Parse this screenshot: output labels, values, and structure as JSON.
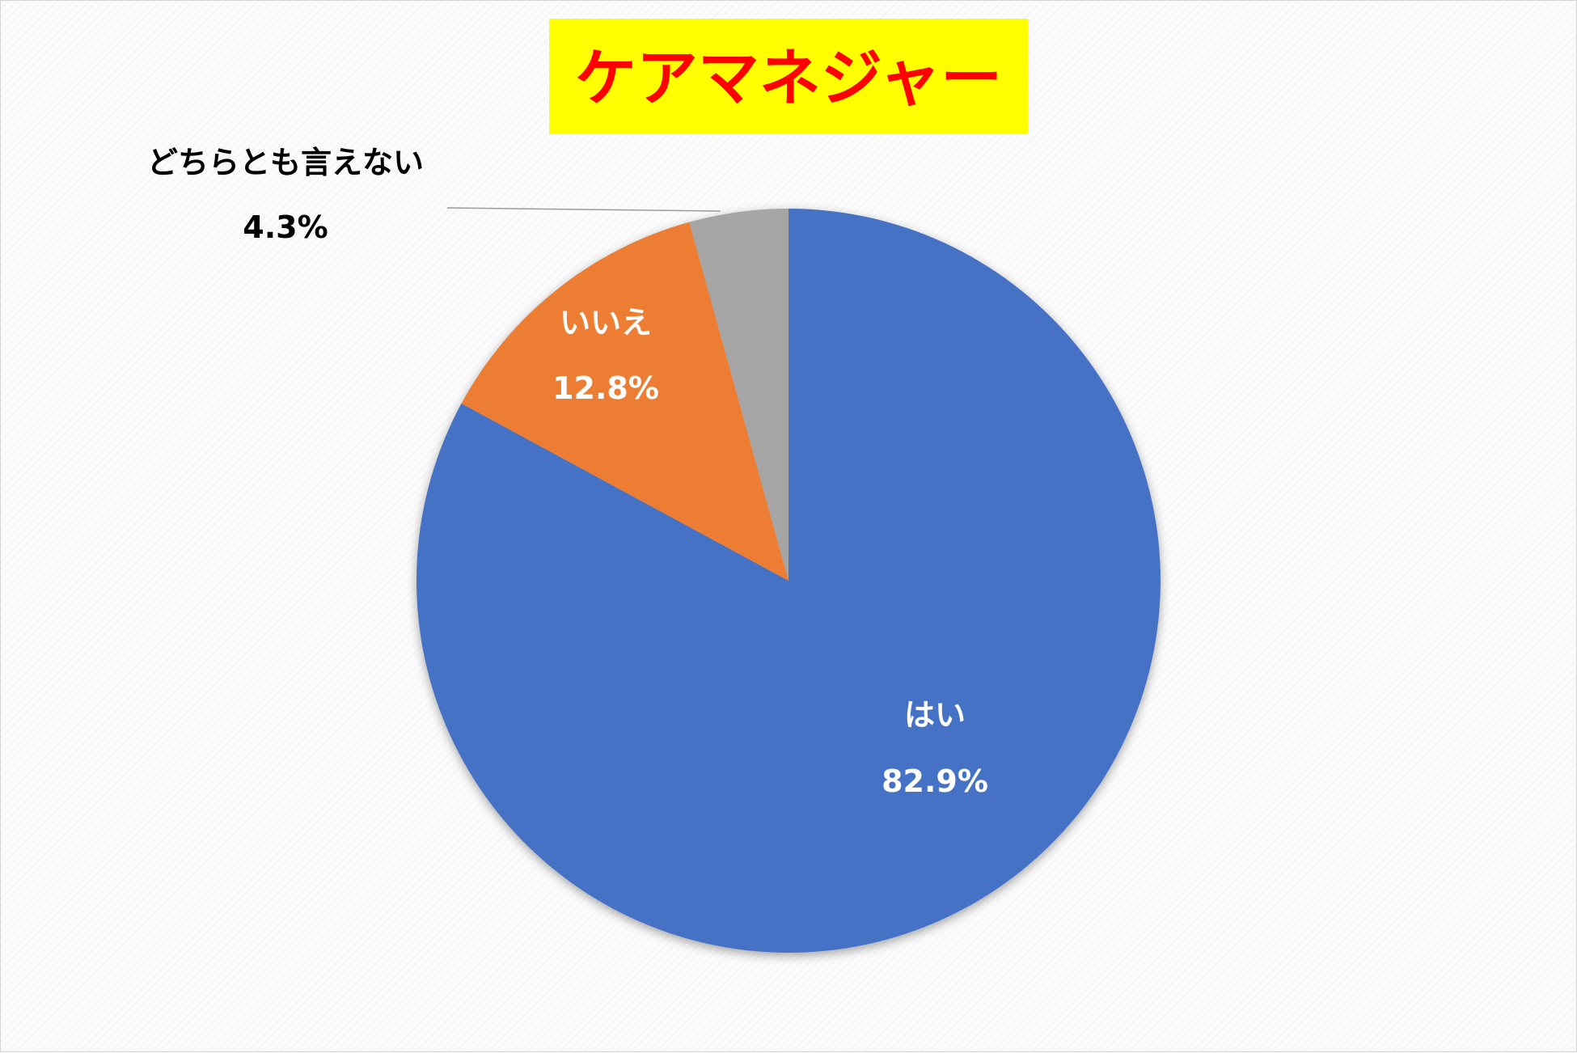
{
  "chart_data": {
    "type": "pie",
    "title": "ケアマネジャー",
    "title_background": "#ffff00",
    "title_color": "#ff0000",
    "start_angle_deg": 0,
    "direction": "clockwise",
    "slices": [
      {
        "label": "はい",
        "value": 82.9,
        "value_label": "82.9%",
        "color": "#4472c4",
        "label_color": "#ffffff"
      },
      {
        "label": "いいえ",
        "value": 12.8,
        "value_label": "12.8%",
        "color": "#ed7d31",
        "label_color": "#ffffff"
      },
      {
        "label": "どちらとも言えない",
        "value": 4.3,
        "value_label": "4.3%",
        "color": "#a5a5a5",
        "label_color": "#000000",
        "label_outside": true
      }
    ],
    "legend": "none"
  }
}
